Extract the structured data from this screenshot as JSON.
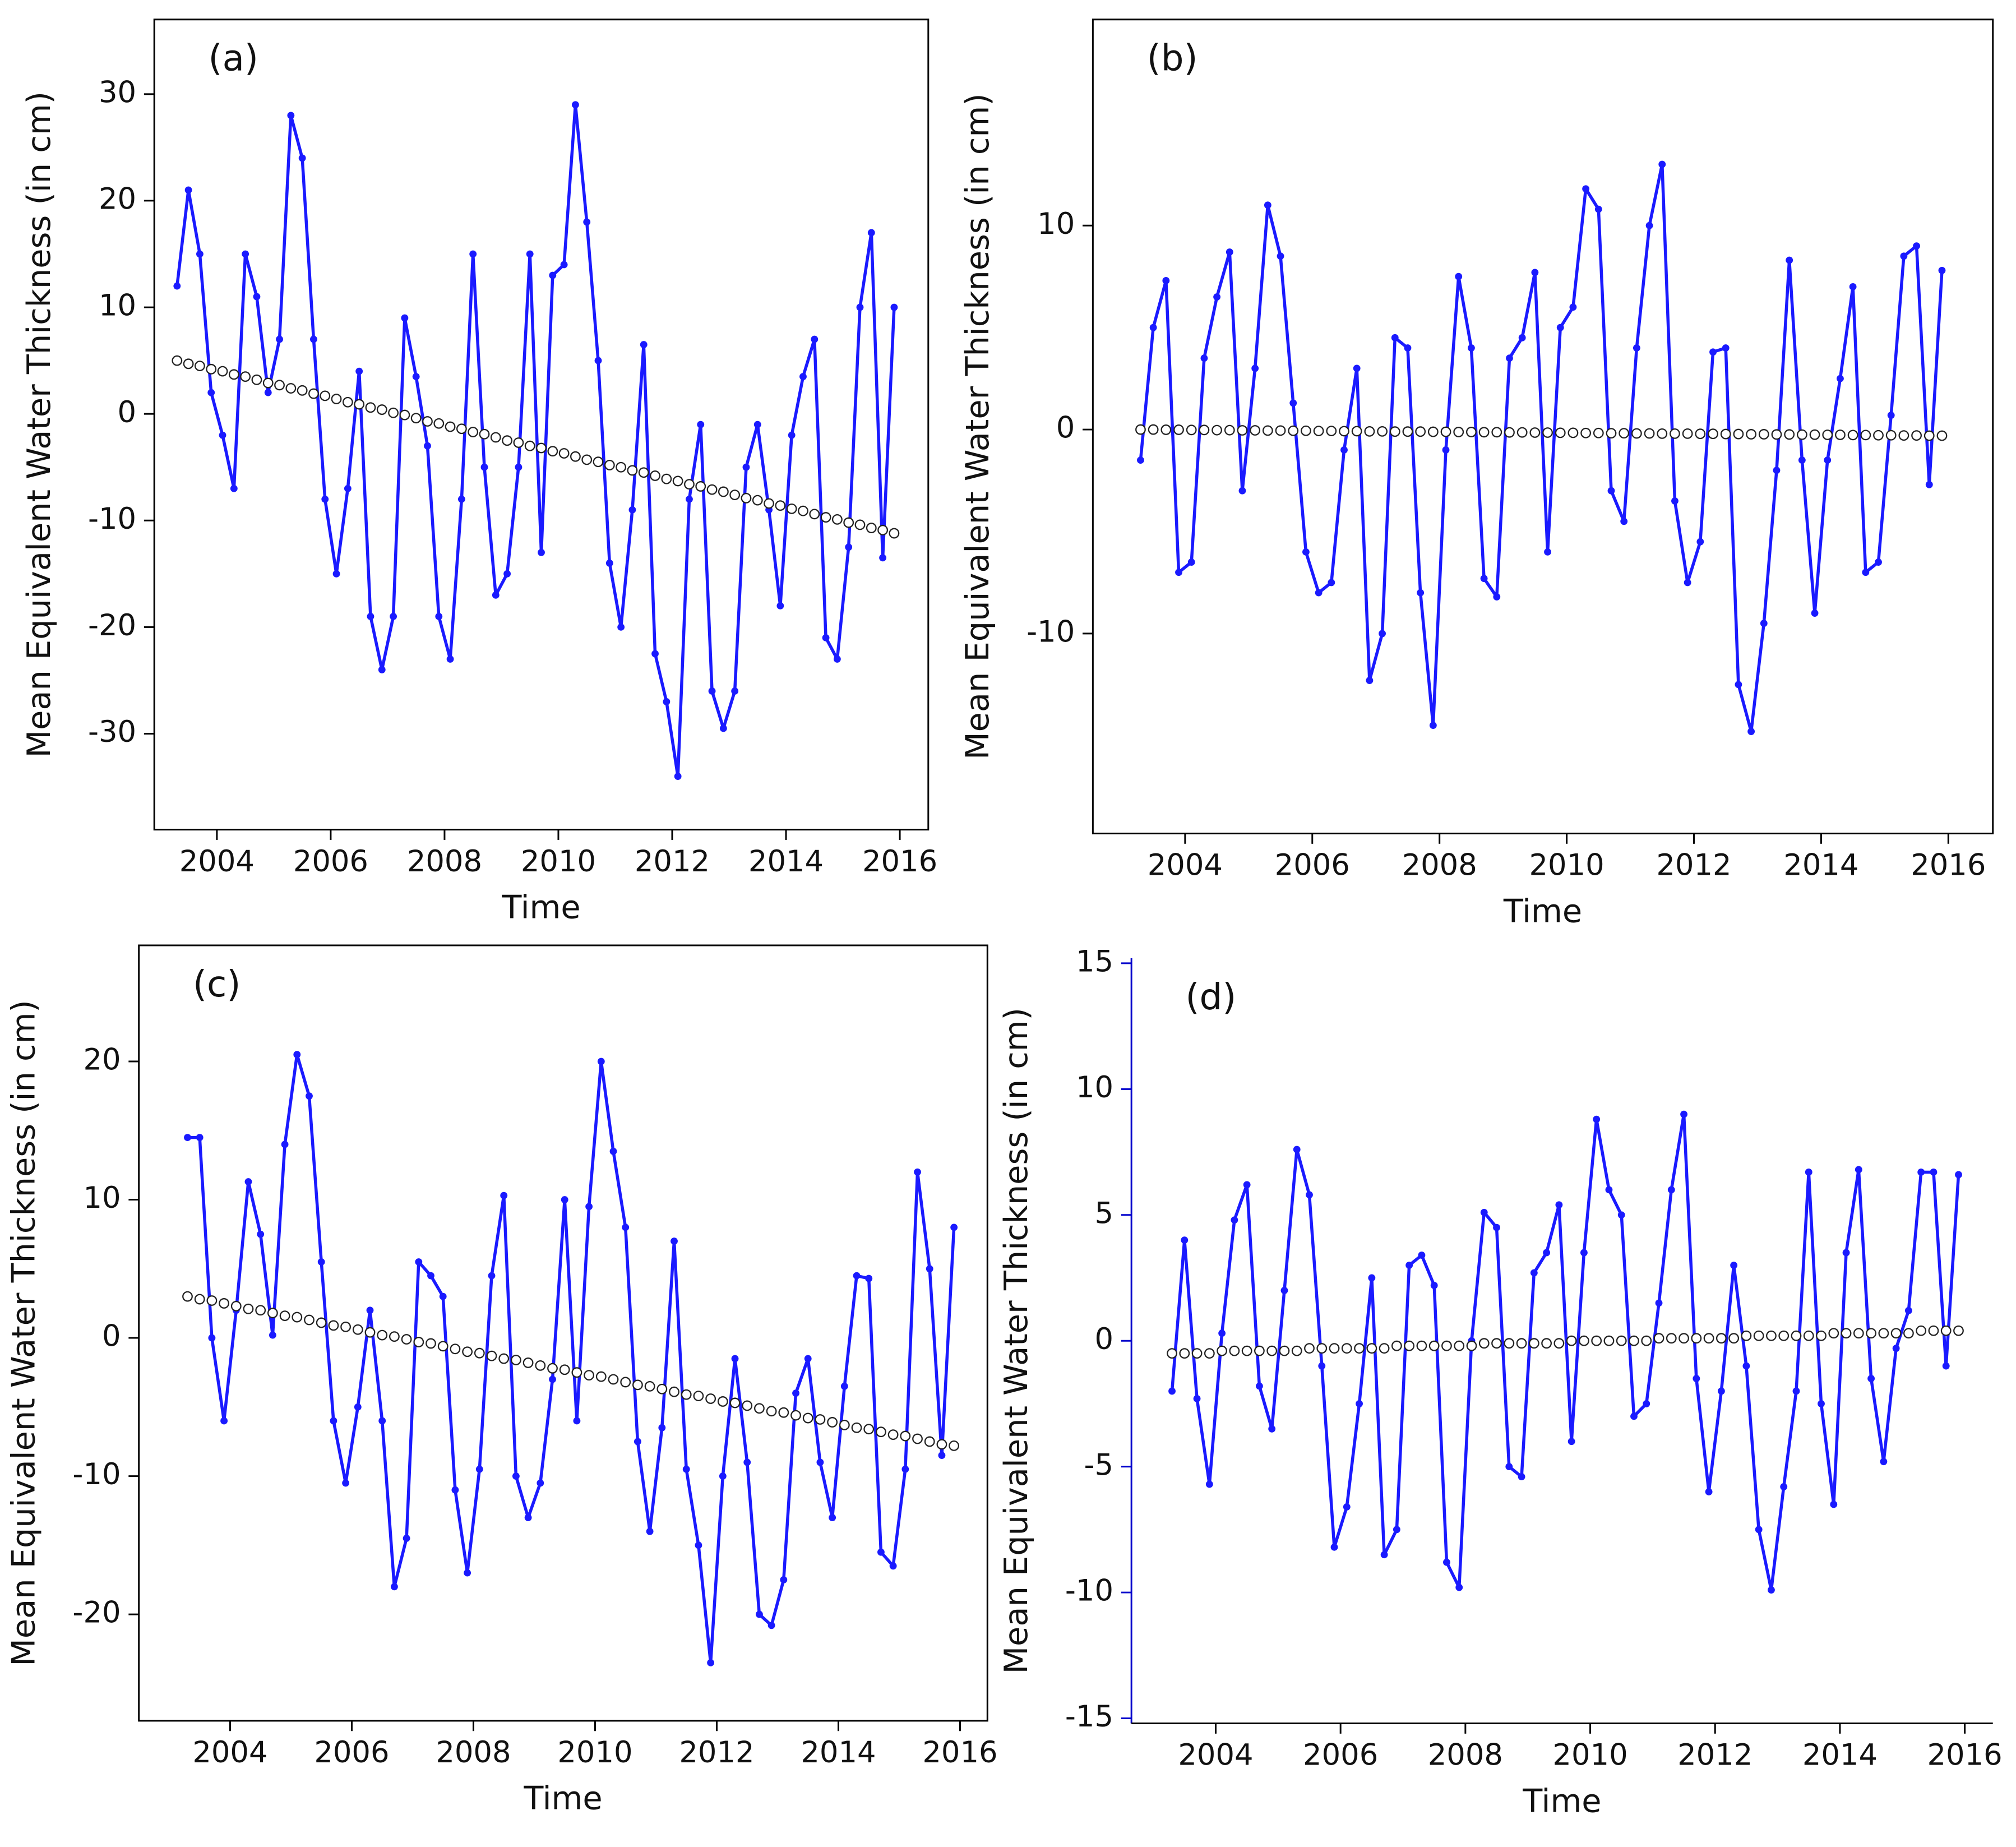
{
  "chart_data": [
    {
      "type": "line",
      "title": "(a)",
      "x_label": "Time",
      "y_label": "Mean Equivalent Water Thickness (in cm)",
      "frame": "box",
      "x": [
        2003.3,
        2003.5,
        2003.7,
        2003.9,
        2004.1,
        2004.3,
        2004.5,
        2004.7,
        2004.9,
        2005.1,
        2005.3,
        2005.5,
        2005.7,
        2005.9,
        2006.1,
        2006.3,
        2006.5,
        2006.7,
        2006.9,
        2007.1,
        2007.3,
        2007.5,
        2007.7,
        2007.9,
        2008.1,
        2008.3,
        2008.5,
        2008.7,
        2008.9,
        2009.1,
        2009.3,
        2009.5,
        2009.7,
        2009.9,
        2010.1,
        2010.3,
        2010.5,
        2010.7,
        2010.9,
        2011.1,
        2011.3,
        2011.5,
        2011.7,
        2011.9,
        2012.1,
        2012.3,
        2012.5,
        2012.7,
        2012.9,
        2013.1,
        2013.3,
        2013.5,
        2013.7,
        2013.9,
        2014.1,
        2014.3,
        2014.5,
        2014.7,
        2014.9,
        2015.1,
        2015.3,
        2015.5,
        2015.7,
        2015.9
      ],
      "xlim": [
        2002.9,
        2016.5
      ],
      "xticks": [
        2004,
        2006,
        2008,
        2010,
        2012,
        2014,
        2016
      ],
      "ylim": [
        -39,
        37
      ],
      "yticks": [
        -30,
        -20,
        -10,
        0,
        10,
        20,
        30
      ],
      "series": [
        {
          "color": "#1a1aff",
          "marker": "dot",
          "values": [
            12,
            21,
            15,
            2,
            -2,
            -7,
            15,
            11,
            2,
            7,
            28,
            24,
            7,
            -8,
            -15,
            -7,
            4,
            -19,
            -24,
            -19,
            9,
            3.5,
            -3,
            -19,
            -23,
            -8,
            15,
            -5,
            -17,
            -15,
            -5,
            15,
            -13,
            13,
            14,
            29,
            18,
            5,
            -14,
            -20,
            -9,
            6.5,
            -22.5,
            -27,
            -34,
            -8,
            -1,
            -26,
            -29.5,
            -26,
            -5,
            -1,
            -9,
            -18,
            -2,
            3.5,
            7,
            -21,
            -23,
            -12.5,
            10,
            17,
            -13.5,
            10
          ]
        },
        {
          "color": "#222222",
          "marker": "circle",
          "values": [
            5.0,
            4.7,
            4.5,
            4.2,
            4.0,
            3.7,
            3.5,
            3.2,
            2.9,
            2.7,
            2.4,
            2.2,
            1.9,
            1.7,
            1.4,
            1.1,
            0.9,
            0.6,
            0.4,
            0.1,
            -0.1,
            -0.4,
            -0.7,
            -0.9,
            -1.2,
            -1.4,
            -1.7,
            -1.9,
            -2.2,
            -2.5,
            -2.7,
            -3.0,
            -3.2,
            -3.5,
            -3.7,
            -4.0,
            -4.3,
            -4.5,
            -4.8,
            -5.0,
            -5.3,
            -5.5,
            -5.8,
            -6.1,
            -6.3,
            -6.6,
            -6.8,
            -7.1,
            -7.3,
            -7.6,
            -7.9,
            -8.1,
            -8.4,
            -8.6,
            -8.9,
            -9.1,
            -9.4,
            -9.7,
            -9.9,
            -10.2,
            -10.4,
            -10.7,
            -10.9,
            -11.2
          ]
        }
      ]
    },
    {
      "type": "line",
      "title": "(b)",
      "x_label": "Time",
      "y_label": "Mean Equivalent Water Thickness (in cm)",
      "frame": "box",
      "x": [
        2003.3,
        2003.5,
        2003.7,
        2003.9,
        2004.1,
        2004.3,
        2004.5,
        2004.7,
        2004.9,
        2005.1,
        2005.3,
        2005.5,
        2005.7,
        2005.9,
        2006.1,
        2006.3,
        2006.5,
        2006.7,
        2006.9,
        2007.1,
        2007.3,
        2007.5,
        2007.7,
        2007.9,
        2008.1,
        2008.3,
        2008.5,
        2008.7,
        2008.9,
        2009.1,
        2009.3,
        2009.5,
        2009.7,
        2009.9,
        2010.1,
        2010.3,
        2010.5,
        2010.7,
        2010.9,
        2011.1,
        2011.3,
        2011.5,
        2011.7,
        2011.9,
        2012.1,
        2012.3,
        2012.5,
        2012.7,
        2012.9,
        2013.1,
        2013.3,
        2013.5,
        2013.7,
        2013.9,
        2014.1,
        2014.3,
        2014.5,
        2014.7,
        2014.9,
        2015.1,
        2015.3,
        2015.5,
        2015.7,
        2015.9
      ],
      "xlim": [
        2002.55,
        2016.7
      ],
      "xticks": [
        2004,
        2006,
        2008,
        2010,
        2012,
        2014,
        2016
      ],
      "ylim": [
        -19.8,
        20.1
      ],
      "yticks": [
        -10,
        0,
        10
      ],
      "series": [
        {
          "color": "#1a1aff",
          "marker": "dot",
          "values": [
            -1.5,
            5,
            7.3,
            -7,
            -6.5,
            3.5,
            6.5,
            8.7,
            -3,
            3,
            11,
            8.5,
            1.3,
            -6,
            -8,
            -7.5,
            -1,
            3,
            -12.3,
            -10,
            4.5,
            4,
            -8,
            -14.5,
            -1,
            7.5,
            4,
            -7.3,
            -8.2,
            3.5,
            4.5,
            7.7,
            -6,
            5,
            6,
            11.8,
            10.8,
            -3,
            -4.5,
            4,
            10,
            13,
            -3.5,
            -7.5,
            -5.5,
            3.8,
            4,
            -12.5,
            -14.8,
            -9.5,
            -2,
            8.3,
            -1.5,
            -9,
            -1.5,
            2.5,
            7,
            -7,
            -6.5,
            0.7,
            8.5,
            9,
            -2.7,
            7.8
          ]
        },
        {
          "color": "#222222",
          "marker": "circle",
          "values": [
            0,
            0,
            -0.01,
            -0.01,
            -0.02,
            -0.02,
            -0.03,
            -0.03,
            -0.04,
            -0.04,
            -0.05,
            -0.05,
            -0.06,
            -0.06,
            -0.07,
            -0.07,
            -0.08,
            -0.08,
            -0.09,
            -0.09,
            -0.1,
            -0.1,
            -0.1,
            -0.11,
            -0.11,
            -0.12,
            -0.12,
            -0.13,
            -0.13,
            -0.14,
            -0.14,
            -0.15,
            -0.15,
            -0.16,
            -0.16,
            -0.17,
            -0.17,
            -0.18,
            -0.18,
            -0.19,
            -0.19,
            -0.2,
            -0.2,
            -0.2,
            -0.21,
            -0.21,
            -0.22,
            -0.22,
            -0.23,
            -0.23,
            -0.24,
            -0.24,
            -0.25,
            -0.25,
            -0.26,
            -0.26,
            -0.27,
            -0.27,
            -0.28,
            -0.28,
            -0.29,
            -0.29,
            -0.3,
            -0.3
          ]
        }
      ]
    },
    {
      "type": "line",
      "title": "(c)",
      "x_label": "Time",
      "y_label": "Mean Equivalent Water Thickness (in cm)",
      "frame": "box",
      "x": [
        2003.3,
        2003.5,
        2003.7,
        2003.9,
        2004.1,
        2004.3,
        2004.5,
        2004.7,
        2004.9,
        2005.1,
        2005.3,
        2005.5,
        2005.7,
        2005.9,
        2006.1,
        2006.3,
        2006.5,
        2006.7,
        2006.9,
        2007.1,
        2007.3,
        2007.5,
        2007.7,
        2007.9,
        2008.1,
        2008.3,
        2008.5,
        2008.7,
        2008.9,
        2009.1,
        2009.3,
        2009.5,
        2009.7,
        2009.9,
        2010.1,
        2010.3,
        2010.5,
        2010.7,
        2010.9,
        2011.1,
        2011.3,
        2011.5,
        2011.7,
        2011.9,
        2012.1,
        2012.3,
        2012.5,
        2012.7,
        2012.9,
        2013.1,
        2013.3,
        2013.5,
        2013.7,
        2013.9,
        2014.1,
        2014.3,
        2014.5,
        2014.7,
        2014.9,
        2015.1,
        2015.3,
        2015.5,
        2015.7,
        2015.9
      ],
      "xlim": [
        2002.5,
        2016.45
      ],
      "xticks": [
        2004,
        2006,
        2008,
        2010,
        2012,
        2014,
        2016
      ],
      "ylim": [
        -27.7,
        28.4
      ],
      "yticks": [
        -20,
        -10,
        0,
        10,
        20
      ],
      "series": [
        {
          "color": "#1a1aff",
          "marker": "dot",
          "values": [
            14.5,
            14.5,
            0,
            -6,
            2,
            11.3,
            7.5,
            0.2,
            14,
            20.5,
            17.5,
            5.5,
            -6,
            -10.5,
            -5,
            2,
            -6,
            -18,
            -14.5,
            5.5,
            4.5,
            3,
            -11,
            -17,
            -9.5,
            4.5,
            10.3,
            -10,
            -13,
            -10.5,
            -3,
            10,
            -6,
            9.5,
            20,
            13.5,
            8,
            -7.5,
            -14,
            -6.5,
            7,
            -9.5,
            -15,
            -23.5,
            -10,
            -1.5,
            -9,
            -20,
            -20.8,
            -17.5,
            -4,
            -1.5,
            -9,
            -13,
            -3.5,
            4.5,
            4.3,
            -15.5,
            -16.5,
            -9.5,
            12,
            5,
            -8.5,
            8
          ]
        },
        {
          "color": "#222222",
          "marker": "circle",
          "values": [
            3.0,
            2.8,
            2.7,
            2.5,
            2.3,
            2.1,
            2.0,
            1.8,
            1.6,
            1.5,
            1.3,
            1.1,
            0.9,
            0.8,
            0.6,
            0.4,
            0.2,
            0.1,
            -0.1,
            -0.3,
            -0.4,
            -0.6,
            -0.8,
            -1.0,
            -1.1,
            -1.3,
            -1.5,
            -1.6,
            -1.8,
            -2.0,
            -2.2,
            -2.3,
            -2.5,
            -2.7,
            -2.8,
            -3.0,
            -3.2,
            -3.4,
            -3.5,
            -3.7,
            -3.9,
            -4.1,
            -4.2,
            -4.4,
            -4.6,
            -4.7,
            -4.9,
            -5.1,
            -5.3,
            -5.4,
            -5.6,
            -5.8,
            -5.9,
            -6.1,
            -6.3,
            -6.5,
            -6.6,
            -6.8,
            -7.0,
            -7.1,
            -7.3,
            -7.5,
            -7.7,
            -7.8
          ]
        }
      ]
    },
    {
      "type": "line",
      "title": "(d)",
      "x_label": "Time",
      "y_label": "Mean Equivalent Water Thickness (in cm)",
      "frame": "axes",
      "x": [
        2003.3,
        2003.5,
        2003.7,
        2003.9,
        2004.1,
        2004.3,
        2004.5,
        2004.7,
        2004.9,
        2005.1,
        2005.3,
        2005.5,
        2005.7,
        2005.9,
        2006.1,
        2006.3,
        2006.5,
        2006.7,
        2006.9,
        2007.1,
        2007.3,
        2007.5,
        2007.7,
        2007.9,
        2008.1,
        2008.3,
        2008.5,
        2008.7,
        2008.9,
        2009.1,
        2009.3,
        2009.5,
        2009.7,
        2009.9,
        2010.1,
        2010.3,
        2010.5,
        2010.7,
        2010.9,
        2011.1,
        2011.3,
        2011.5,
        2011.7,
        2011.9,
        2012.1,
        2012.3,
        2012.5,
        2012.7,
        2012.9,
        2013.1,
        2013.3,
        2013.5,
        2013.7,
        2013.9,
        2014.1,
        2014.3,
        2014.5,
        2014.7,
        2014.9,
        2015.1,
        2015.3,
        2015.5,
        2015.7,
        2015.9
      ],
      "xlim": [
        2002.65,
        2016.45
      ],
      "xticks": [
        2004,
        2006,
        2008,
        2010,
        2012,
        2014,
        2016
      ],
      "ylim": [
        -15.2,
        15.2
      ],
      "yticks": [
        -15,
        -10,
        -5,
        0,
        5,
        10,
        15
      ],
      "series": [
        {
          "color": "#1a1aff",
          "marker": "dot",
          "values": [
            -2,
            4,
            -2.3,
            -5.7,
            0.3,
            4.8,
            6.2,
            -1.8,
            -3.5,
            2,
            7.6,
            5.8,
            -1,
            -8.2,
            -6.6,
            -2.5,
            2.5,
            -8.5,
            -7.5,
            3,
            3.4,
            2.2,
            -8.8,
            -9.8,
            0,
            5.1,
            4.5,
            -5,
            -5.4,
            2.7,
            3.5,
            5.4,
            -4,
            3.5,
            8.8,
            6,
            5,
            -3,
            -2.5,
            1.5,
            6,
            9,
            -1.5,
            -6,
            -2,
            3,
            -1,
            -7.5,
            -9.9,
            -5.8,
            -2,
            6.7,
            -2.5,
            -6.5,
            3.5,
            6.8,
            -1.5,
            -4.8,
            -0.3,
            1.2,
            6.7,
            6.7,
            -1,
            6.6
          ]
        },
        {
          "color": "#222222",
          "marker": "circle",
          "values": [
            -0.5,
            -0.5,
            -0.5,
            -0.5,
            -0.4,
            -0.4,
            -0.4,
            -0.4,
            -0.4,
            -0.4,
            -0.4,
            -0.3,
            -0.3,
            -0.3,
            -0.3,
            -0.3,
            -0.3,
            -0.3,
            -0.2,
            -0.2,
            -0.2,
            -0.2,
            -0.2,
            -0.2,
            -0.2,
            -0.1,
            -0.1,
            -0.1,
            -0.1,
            -0.1,
            -0.1,
            -0.1,
            0,
            0,
            0,
            0,
            0,
            0,
            0,
            0.1,
            0.1,
            0.1,
            0.1,
            0.1,
            0.1,
            0.1,
            0.2,
            0.2,
            0.2,
            0.2,
            0.2,
            0.2,
            0.2,
            0.3,
            0.3,
            0.3,
            0.3,
            0.3,
            0.3,
            0.3,
            0.4,
            0.4,
            0.4,
            0.4
          ]
        }
      ]
    }
  ]
}
